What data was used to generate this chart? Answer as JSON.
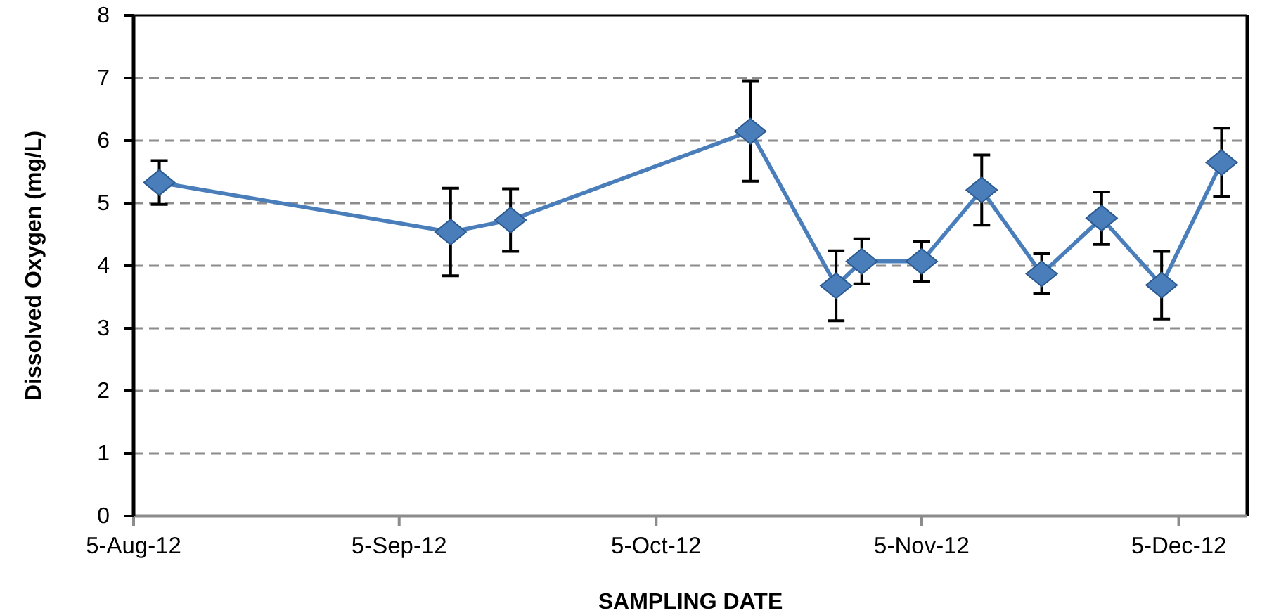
{
  "chart_data": {
    "type": "line",
    "xlabel": "SAMPLING DATE",
    "ylabel": "Dissolved Oxygen (mg/L)",
    "x": [
      "2012-08-08",
      "2012-09-11",
      "2012-09-18",
      "2012-10-16",
      "2012-10-26",
      "2012-10-29",
      "2012-11-05",
      "2012-11-12",
      "2012-11-19",
      "2012-11-26",
      "2012-12-03",
      "2012-12-10"
    ],
    "series": [
      {
        "color": "#4a7ebb",
        "values": [
          5.33,
          4.54,
          4.73,
          6.15,
          3.68,
          4.07,
          4.07,
          5.21,
          3.87,
          4.76,
          3.69,
          5.65
        ],
        "errors": [
          0.35,
          0.7,
          0.5,
          0.8,
          0.56,
          0.36,
          0.32,
          0.56,
          0.32,
          0.42,
          0.54,
          0.55
        ]
      }
    ],
    "xlim": [
      "2012-08-05",
      "2012-12-13"
    ],
    "xticks": [
      {
        "value": "2012-08-05",
        "label": "5-Aug-12"
      },
      {
        "value": "2012-09-05",
        "label": "5-Sep-12"
      },
      {
        "value": "2012-10-05",
        "label": "5-Oct-12"
      },
      {
        "value": "2012-11-05",
        "label": "5-Nov-12"
      },
      {
        "value": "2012-12-05",
        "label": "5-Dec-12"
      }
    ],
    "ylim": [
      0,
      8
    ],
    "yticks": [
      0,
      1,
      2,
      3,
      4,
      5,
      6,
      7,
      8
    ],
    "grid": "y",
    "marker": "diamond"
  }
}
